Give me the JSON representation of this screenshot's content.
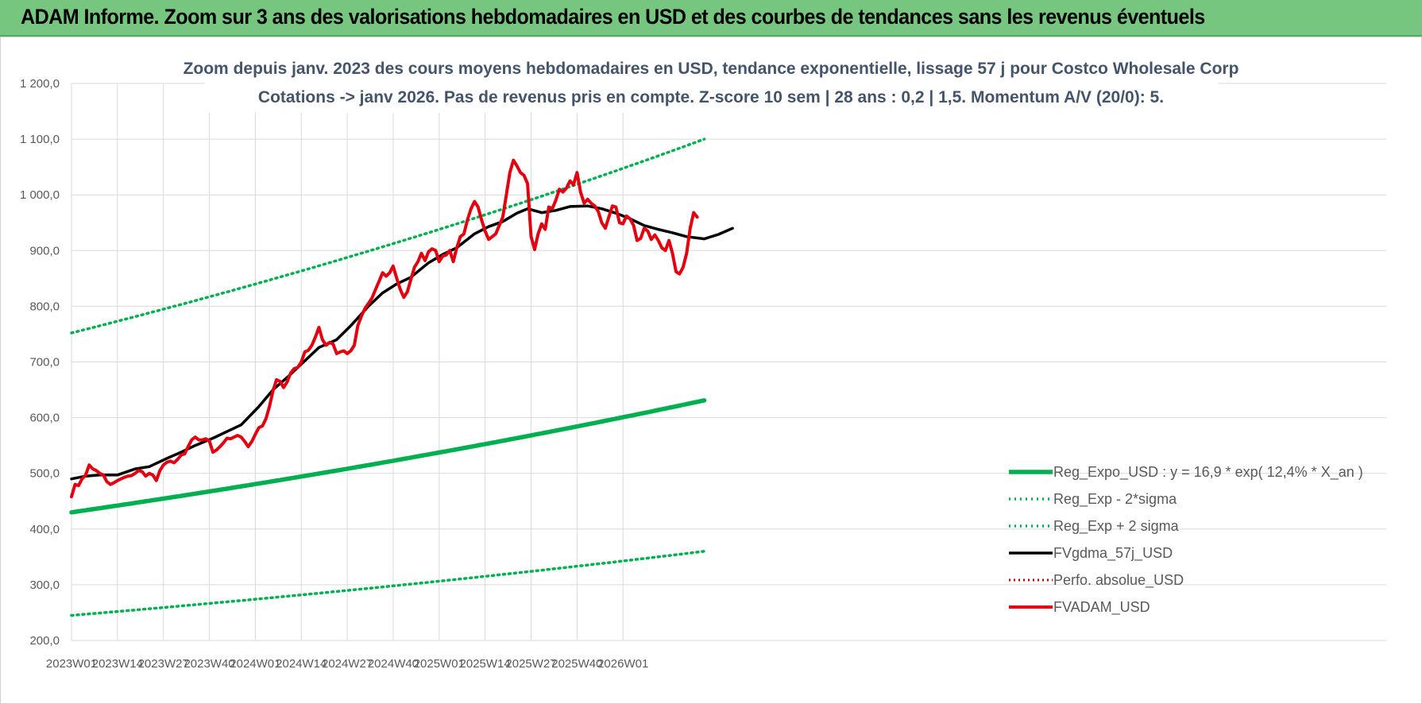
{
  "header": {
    "banner": "ADAM Informe. Zoom sur 3 ans des valorisations hebdomadaires en USD et des courbes de tendances sans les revenus éventuels"
  },
  "colors": {
    "banner_bg": "#77c67f",
    "trend": "#00b050",
    "gdma": "#000000",
    "adam": "#e3000f",
    "perfo": "#c00000",
    "grid": "#d9d9d9"
  },
  "chart_data": {
    "type": "line",
    "title": "Zoom depuis janv. 2023 des cours moyens hebdomadaires en USD, tendance exponentielle, lissage 57 j pour Costco Wholesale Corp",
    "subtitle": "Cotations -> janv 2026. Pas de revenus pris en compte. Z-score 10 sem | 28 ans : 0,2 | 1,5. Momentum A/V (20/0): 5.",
    "xlabel": "",
    "ylabel": "",
    "ylim": [
      200,
      1200
    ],
    "y_ticks": [
      "200,0",
      "300,0",
      "400,0",
      "500,0",
      "600,0",
      "700,0",
      "800,0",
      "900,0",
      "1 000,0",
      "1 100,0",
      "1 200,0"
    ],
    "x_ticks": [
      "2023W01",
      "2023W14",
      "2023W27",
      "2023W40",
      "2024W01",
      "2024W14",
      "2024W27",
      "2024W40",
      "2025W01",
      "2025W14",
      "2025W27",
      "2025W40",
      "2026W01"
    ],
    "week_count": 164,
    "grid": true,
    "legend_position": "bottom-right",
    "series": [
      {
        "name": "Reg_Expo_USD : y = 16,9 * exp( 12,4% *  X_an )",
        "style": "thick-solid",
        "start": 430,
        "end": 631
      },
      {
        "name": "Reg_Exp - 2*sigma",
        "style": "dotted",
        "start": 245,
        "end": 360
      },
      {
        "name": "Reg_Exp + 2 sigma",
        "style": "dotted",
        "start": 752,
        "end": 1100
      },
      {
        "name": "FVgdma_57j_USD",
        "style": "solid",
        "points": [
          [
            0,
            490
          ],
          [
            4,
            495
          ],
          [
            8,
            497
          ],
          [
            13,
            497
          ],
          [
            18,
            508
          ],
          [
            22,
            512
          ],
          [
            27,
            527
          ],
          [
            31,
            538
          ],
          [
            35,
            550
          ],
          [
            40,
            563
          ],
          [
            44,
            575
          ],
          [
            48,
            587
          ],
          [
            53,
            620
          ],
          [
            57,
            650
          ],
          [
            61,
            672
          ],
          [
            66,
            702
          ],
          [
            70,
            726
          ],
          [
            75,
            740
          ],
          [
            79,
            765
          ],
          [
            84,
            800
          ],
          [
            88,
            824
          ],
          [
            92,
            840
          ],
          [
            96,
            852
          ],
          [
            101,
            878
          ],
          [
            105,
            893
          ],
          [
            109,
            905
          ],
          [
            114,
            930
          ],
          [
            118,
            943
          ],
          [
            122,
            952
          ],
          [
            126,
            967
          ],
          [
            129,
            975
          ],
          [
            133,
            968
          ],
          [
            137,
            972
          ],
          [
            141,
            979
          ],
          [
            146,
            980
          ],
          [
            150,
            975
          ],
          [
            154,
            967
          ],
          [
            158,
            957
          ],
          [
            162,
            945
          ],
          [
            166,
            938
          ],
          [
            170,
            932
          ],
          [
            174,
            925
          ],
          [
            179,
            921
          ],
          [
            183,
            929
          ],
          [
            187,
            940
          ]
        ]
      },
      {
        "name": "Perfo. absolue_USD",
        "style": "dotted",
        "points": []
      },
      {
        "name": "FVADAM_USD",
        "style": "solid",
        "points": [
          [
            0,
            458
          ],
          [
            1,
            480
          ],
          [
            2,
            478
          ],
          [
            3,
            490
          ],
          [
            4,
            497
          ],
          [
            5,
            515
          ],
          [
            6,
            508
          ],
          [
            7,
            505
          ],
          [
            8,
            500
          ],
          [
            9,
            497
          ],
          [
            10,
            485
          ],
          [
            11,
            480
          ],
          [
            12,
            483
          ],
          [
            13,
            487
          ],
          [
            14,
            490
          ],
          [
            15,
            493
          ],
          [
            16,
            495
          ],
          [
            17,
            496
          ],
          [
            18,
            500
          ],
          [
            19,
            505
          ],
          [
            20,
            503
          ],
          [
            21,
            495
          ],
          [
            22,
            500
          ],
          [
            23,
            497
          ],
          [
            24,
            487
          ],
          [
            25,
            505
          ],
          [
            26,
            515
          ],
          [
            27,
            520
          ],
          [
            28,
            522
          ],
          [
            29,
            519
          ],
          [
            30,
            525
          ],
          [
            31,
            533
          ],
          [
            32,
            535
          ],
          [
            33,
            548
          ],
          [
            34,
            560
          ],
          [
            35,
            565
          ],
          [
            36,
            560
          ],
          [
            37,
            560
          ],
          [
            38,
            562
          ],
          [
            39,
            558
          ],
          [
            40,
            538
          ],
          [
            41,
            542
          ],
          [
            42,
            548
          ],
          [
            43,
            555
          ],
          [
            44,
            563
          ],
          [
            45,
            562
          ],
          [
            46,
            565
          ],
          [
            47,
            568
          ],
          [
            48,
            565
          ],
          [
            49,
            557
          ],
          [
            50,
            548
          ],
          [
            51,
            557
          ],
          [
            52,
            570
          ],
          [
            53,
            582
          ],
          [
            54,
            585
          ],
          [
            55,
            598
          ],
          [
            56,
            620
          ],
          [
            57,
            648
          ],
          [
            58,
            668
          ],
          [
            59,
            665
          ],
          [
            60,
            654
          ],
          [
            61,
            664
          ],
          [
            62,
            680
          ],
          [
            63,
            688
          ],
          [
            64,
            690
          ],
          [
            65,
            700
          ],
          [
            66,
            718
          ],
          [
            67,
            721
          ],
          [
            68,
            730
          ],
          [
            69,
            745
          ],
          [
            70,
            762
          ],
          [
            71,
            740
          ],
          [
            72,
            730
          ],
          [
            73,
            735
          ],
          [
            74,
            732
          ],
          [
            75,
            715
          ],
          [
            76,
            718
          ],
          [
            77,
            720
          ],
          [
            78,
            715
          ],
          [
            79,
            720
          ],
          [
            80,
            730
          ],
          [
            81,
            765
          ],
          [
            82,
            782
          ],
          [
            83,
            796
          ],
          [
            84,
            805
          ],
          [
            85,
            815
          ],
          [
            86,
            830
          ],
          [
            87,
            845
          ],
          [
            88,
            860
          ],
          [
            89,
            854
          ],
          [
            90,
            860
          ],
          [
            91,
            872
          ],
          [
            92,
            850
          ],
          [
            93,
            830
          ],
          [
            94,
            816
          ],
          [
            95,
            826
          ],
          [
            96,
            848
          ],
          [
            97,
            870
          ],
          [
            98,
            880
          ],
          [
            99,
            895
          ],
          [
            100,
            882
          ],
          [
            101,
            898
          ],
          [
            102,
            903
          ],
          [
            103,
            900
          ],
          [
            104,
            880
          ],
          [
            105,
            890
          ],
          [
            106,
            892
          ],
          [
            107,
            900
          ],
          [
            108,
            880
          ],
          [
            109,
            905
          ],
          [
            110,
            925
          ],
          [
            111,
            930
          ],
          [
            112,
            955
          ],
          [
            113,
            975
          ],
          [
            114,
            988
          ],
          [
            115,
            978
          ],
          [
            116,
            955
          ],
          [
            117,
            935
          ],
          [
            118,
            920
          ],
          [
            119,
            925
          ],
          [
            120,
            930
          ],
          [
            121,
            945
          ],
          [
            122,
            960
          ],
          [
            123,
            1000
          ],
          [
            124,
            1040
          ],
          [
            125,
            1062
          ],
          [
            126,
            1052
          ],
          [
            127,
            1040
          ],
          [
            128,
            1035
          ],
          [
            129,
            1020
          ],
          [
            130,
            925
          ],
          [
            131,
            902
          ],
          [
            132,
            930
          ],
          [
            133,
            948
          ],
          [
            134,
            938
          ],
          [
            135,
            978
          ],
          [
            136,
            975
          ],
          [
            137,
            990
          ],
          [
            138,
            1010
          ],
          [
            139,
            1005
          ],
          [
            140,
            1012
          ],
          [
            141,
            1025
          ],
          [
            142,
            1018
          ],
          [
            143,
            1040
          ],
          [
            144,
            1005
          ],
          [
            145,
            985
          ],
          [
            146,
            992
          ],
          [
            147,
            985
          ],
          [
            148,
            980
          ],
          [
            149,
            970
          ],
          [
            150,
            950
          ],
          [
            151,
            940
          ],
          [
            152,
            960
          ],
          [
            153,
            980
          ],
          [
            154,
            978
          ],
          [
            155,
            950
          ],
          [
            156,
            948
          ],
          [
            157,
            962
          ],
          [
            158,
            957
          ],
          [
            159,
            945
          ],
          [
            160,
            918
          ],
          [
            161,
            922
          ],
          [
            162,
            940
          ],
          [
            163,
            935
          ],
          [
            164,
            920
          ],
          [
            165,
            928
          ],
          [
            166,
            918
          ],
          [
            167,
            905
          ],
          [
            168,
            900
          ],
          [
            169,
            918
          ],
          [
            170,
            895
          ],
          [
            171,
            862
          ],
          [
            172,
            858
          ],
          [
            173,
            870
          ],
          [
            174,
            895
          ],
          [
            175,
            940
          ],
          [
            176,
            968
          ],
          [
            177,
            960
          ]
        ]
      }
    ]
  }
}
